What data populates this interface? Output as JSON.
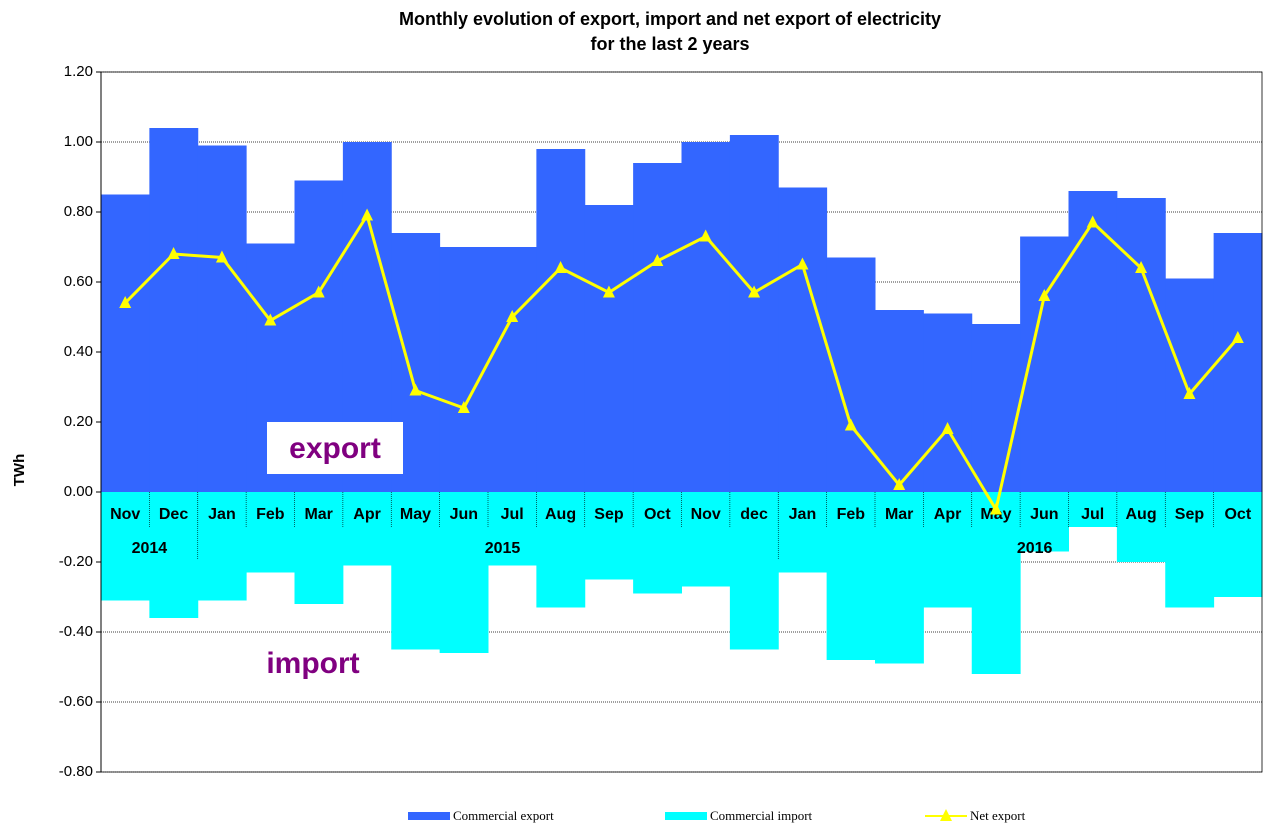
{
  "chart_data": {
    "type": "bar-line",
    "title": [
      "Monthly evolution of export, import and net export of electricity",
      "for the last 2 years"
    ],
    "y_label": "TWh",
    "categories": [
      "Nov",
      "Dec",
      "Jan",
      "Feb",
      "Mar",
      "Apr",
      "May",
      "Jun",
      "Jul",
      "Aug",
      "Sep",
      "Oct",
      "Nov",
      "dec",
      "Jan",
      "Feb",
      "Mar",
      "Apr",
      "May",
      "Jun",
      "Jul",
      "Aug",
      "Sep",
      "Oct"
    ],
    "groups": [
      {
        "label": "2014",
        "categories": 2
      },
      {
        "label": "2015",
        "categories": 12
      },
      {
        "label": "2016",
        "categories": 10
      }
    ],
    "series": [
      {
        "name": "Commercial export",
        "kind": "bar",
        "color": "#3366ff",
        "values": [
          0.85,
          1.04,
          0.99,
          0.71,
          0.89,
          1.0,
          0.74,
          0.7,
          0.7,
          0.98,
          0.82,
          0.94,
          1.0,
          1.02,
          0.87,
          0.67,
          0.52,
          0.51,
          0.48,
          0.73,
          0.86,
          0.84,
          0.61,
          0.74
        ]
      },
      {
        "name": "Commercial import",
        "kind": "bar",
        "color": "#00ffff",
        "values": [
          -0.31,
          -0.36,
          -0.31,
          -0.23,
          -0.32,
          -0.21,
          -0.45,
          -0.46,
          -0.21,
          -0.33,
          -0.25,
          -0.29,
          -0.27,
          -0.45,
          -0.23,
          -0.48,
          -0.49,
          -0.33,
          -0.52,
          -0.17,
          -0.1,
          -0.2,
          -0.33,
          -0.3
        ]
      },
      {
        "name": "Net export",
        "kind": "line",
        "color": "#ffff00",
        "values": [
          0.54,
          0.68,
          0.67,
          0.49,
          0.57,
          0.79,
          0.29,
          0.24,
          0.5,
          0.64,
          0.57,
          0.66,
          0.73,
          0.57,
          0.65,
          0.19,
          0.02,
          0.18,
          -0.05,
          0.56,
          0.77,
          0.64,
          0.28,
          0.44
        ]
      }
    ],
    "annotations": [
      "export",
      "import"
    ],
    "ylim": [
      -0.8,
      1.2
    ],
    "yticks": [
      {
        "value": 1.2,
        "label": "1.20"
      },
      {
        "value": 1,
        "label": "1.00"
      },
      {
        "value": 0.8,
        "label": "0.80"
      },
      {
        "value": 0.6,
        "label": "0.60"
      },
      {
        "value": 0.4,
        "label": "0.40"
      },
      {
        "value": 0.2,
        "label": "0.20"
      },
      {
        "value": 0,
        "label": "0.00"
      },
      {
        "value": -0.2,
        "label": "-0.20"
      },
      {
        "value": -0.4,
        "label": "-0.40"
      },
      {
        "value": -0.6,
        "label": "-0.60"
      },
      {
        "value": -0.8,
        "label": "-0.80"
      }
    ],
    "grid": true
  }
}
